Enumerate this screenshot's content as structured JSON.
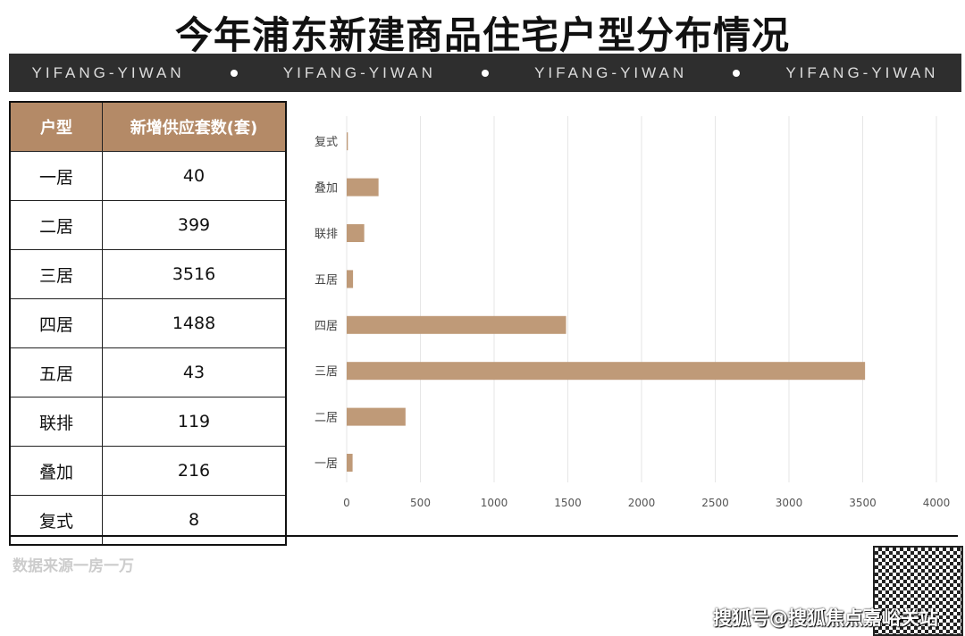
{
  "title": "今年浦东新建商品住宅户型分布情况",
  "band": [
    "YIFANG-YIWAN",
    "YIFANG-YIWAN",
    "YIFANG-YIWAN",
    "YIFANG-YIWAN"
  ],
  "table": {
    "headers": [
      "户型",
      "新增供应套数(套)"
    ],
    "rows": [
      [
        "一居",
        "40"
      ],
      [
        "二居",
        "399"
      ],
      [
        "三居",
        "3516"
      ],
      [
        "四居",
        "1488"
      ],
      [
        "五居",
        "43"
      ],
      [
        "联排",
        "119"
      ],
      [
        "叠加",
        "216"
      ],
      [
        "复式",
        "8"
      ]
    ]
  },
  "chart_data": {
    "type": "bar",
    "orientation": "horizontal",
    "categories": [
      "一居",
      "二居",
      "三居",
      "四居",
      "五居",
      "联排",
      "叠加",
      "复式"
    ],
    "values": [
      40,
      399,
      3516,
      1488,
      43,
      119,
      216,
      8
    ],
    "xlim": [
      0,
      4000
    ],
    "xticks": [
      "0",
      "500",
      "1000",
      "1500",
      "2000",
      "2500",
      "3000",
      "3500",
      "4000"
    ],
    "grid": "vertical",
    "bar_color": "#bf9a78"
  },
  "footer": {
    "source": "数据来源一房一万",
    "watermark": "搜狐号@搜狐焦点嘉峪关站"
  },
  "colors": {
    "header_bg": "#b48a67",
    "band_bg": "#2e2e2e"
  }
}
